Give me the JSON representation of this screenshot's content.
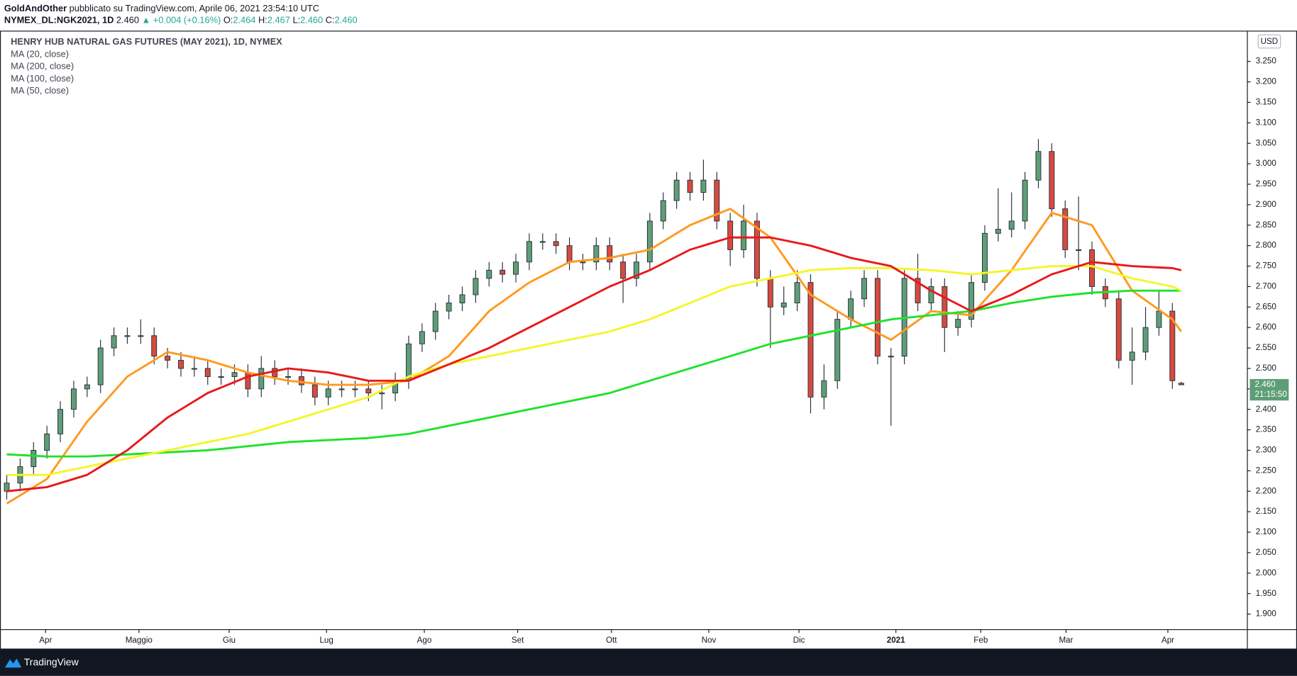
{
  "header": {
    "author": "GoldAndOther",
    "published": "pubblicato su TradingView.com, Aprile 06, 2021 23:54:10 UTC",
    "symbol": "NYMEX_DL:NGK2021, 1D",
    "last": "2.460",
    "change": "▲ +0.004 (+0.16%)",
    "ohlc": [
      {
        "label": "O:",
        "value": "2.464"
      },
      {
        "label": "H:",
        "value": "2.467"
      },
      {
        "label": "L:",
        "value": "2.460"
      },
      {
        "label": "C:",
        "value": "2.460"
      }
    ]
  },
  "chart_data": {
    "type": "candlestick",
    "title": "HENRY HUB NATURAL GAS FUTURES (MAY 2021), 1D, NYMEX",
    "currency": "USD",
    "last_price_label": "2.460",
    "countdown": "21:15:50",
    "grid": false,
    "up_color": "#5e9e77",
    "down_color": "#d64a3f",
    "xlim": [
      -0.4,
      277.8
    ],
    "ylim": [
      1.862,
      3.323
    ],
    "xticks": [
      {
        "value": 8.7,
        "label": "Apr"
      },
      {
        "value": 29.6,
        "label": "Maggio"
      },
      {
        "value": 49.8,
        "label": "Giu"
      },
      {
        "value": 71.6,
        "label": "Lug"
      },
      {
        "value": 93.5,
        "label": "Ago"
      },
      {
        "value": 114.4,
        "label": "Set"
      },
      {
        "value": 135.4,
        "label": "Ott"
      },
      {
        "value": 157.2,
        "label": "Nov"
      },
      {
        "value": 177.4,
        "label": "Dic"
      },
      {
        "value": 199.1,
        "label": "2021"
      },
      {
        "value": 218.1,
        "label": "Feb"
      },
      {
        "value": 237.2,
        "label": "Mar"
      },
      {
        "value": 260.0,
        "label": "Apr"
      }
    ],
    "yticks": [
      {
        "value": 1.9,
        "label": "1.900"
      },
      {
        "value": 1.95,
        "label": "1.950"
      },
      {
        "value": 2.0,
        "label": "2.000"
      },
      {
        "value": 2.05,
        "label": "2.050"
      },
      {
        "value": 2.1,
        "label": "2.100"
      },
      {
        "value": 2.15,
        "label": "2.150"
      },
      {
        "value": 2.2,
        "label": "2.200"
      },
      {
        "value": 2.25,
        "label": "2.250"
      },
      {
        "value": 2.3,
        "label": "2.300"
      },
      {
        "value": 2.35,
        "label": "2.350"
      },
      {
        "value": 2.4,
        "label": "2.400"
      },
      {
        "value": 2.45,
        "label": "2.450"
      },
      {
        "value": 2.5,
        "label": "2.500"
      },
      {
        "value": 2.55,
        "label": "2.550"
      },
      {
        "value": 2.6,
        "label": "2.600"
      },
      {
        "value": 2.65,
        "label": "2.650"
      },
      {
        "value": 2.7,
        "label": "2.700"
      },
      {
        "value": 2.75,
        "label": "2.750"
      },
      {
        "value": 2.8,
        "label": "2.800"
      },
      {
        "value": 2.85,
        "label": "2.850"
      },
      {
        "value": 2.9,
        "label": "2.900"
      },
      {
        "value": 2.95,
        "label": "2.950"
      },
      {
        "value": 3.0,
        "label": "3.000"
      },
      {
        "value": 3.05,
        "label": "3.050"
      },
      {
        "value": 3.1,
        "label": "3.100"
      },
      {
        "value": 3.15,
        "label": "3.150"
      },
      {
        "value": 3.2,
        "label": "3.200"
      },
      {
        "value": 3.25,
        "label": "3.250"
      }
    ],
    "x": [
      0,
      3,
      6,
      9,
      12,
      15,
      18,
      21,
      24,
      27,
      30,
      33,
      36,
      39,
      42,
      45,
      48,
      51,
      54,
      57,
      60,
      63,
      66,
      69,
      72,
      75,
      78,
      81,
      84,
      87,
      90,
      93,
      96,
      99,
      102,
      105,
      108,
      111,
      114,
      117,
      120,
      123,
      126,
      129,
      132,
      135,
      138,
      141,
      144,
      147,
      150,
      153,
      156,
      159,
      162,
      165,
      168,
      171,
      174,
      177,
      180,
      183,
      186,
      189,
      192,
      195,
      198,
      201,
      204,
      207,
      210,
      213,
      216,
      219,
      222,
      225,
      228,
      231,
      234,
      237,
      240,
      243,
      246,
      249,
      252,
      255,
      258,
      261,
      263
    ],
    "open": [
      2.2,
      2.22,
      2.26,
      2.3,
      2.34,
      2.4,
      2.45,
      2.46,
      2.55,
      2.58,
      2.58,
      2.58,
      2.53,
      2.52,
      2.5,
      2.5,
      2.48,
      2.48,
      2.49,
      2.45,
      2.5,
      2.48,
      2.48,
      2.46,
      2.43,
      2.45,
      2.45,
      2.45,
      2.44,
      2.44,
      2.47,
      2.56,
      2.59,
      2.64,
      2.66,
      2.68,
      2.72,
      2.74,
      2.73,
      2.76,
      2.81,
      2.81,
      2.8,
      2.76,
      2.76,
      2.8,
      2.76,
      2.72,
      2.76,
      2.86,
      2.91,
      2.96,
      2.93,
      2.96,
      2.86,
      2.79,
      2.86,
      2.72,
      2.65,
      2.66,
      2.71,
      2.43,
      2.47,
      2.62,
      2.67,
      2.72,
      2.53,
      2.53,
      2.72,
      2.66,
      2.7,
      2.6,
      2.62,
      2.71,
      2.83,
      2.84,
      2.86,
      2.96,
      3.03,
      2.89,
      2.79,
      2.79,
      2.7,
      2.67,
      2.52,
      2.54,
      2.6,
      2.64,
      2.464
    ],
    "high": [
      2.24,
      2.28,
      2.32,
      2.36,
      2.42,
      2.47,
      2.48,
      2.57,
      2.6,
      2.6,
      2.62,
      2.6,
      2.55,
      2.54,
      2.53,
      2.52,
      2.5,
      2.51,
      2.51,
      2.53,
      2.52,
      2.5,
      2.5,
      2.48,
      2.47,
      2.47,
      2.47,
      2.47,
      2.46,
      2.49,
      2.58,
      2.61,
      2.66,
      2.68,
      2.7,
      2.74,
      2.76,
      2.76,
      2.78,
      2.83,
      2.83,
      2.83,
      2.82,
      2.78,
      2.82,
      2.82,
      2.78,
      2.78,
      2.88,
      2.93,
      2.98,
      2.98,
      3.01,
      2.98,
      2.88,
      2.9,
      2.88,
      2.74,
      2.7,
      2.74,
      2.73,
      2.51,
      2.64,
      2.69,
      2.74,
      2.74,
      2.55,
      2.74,
      2.78,
      2.72,
      2.72,
      2.64,
      2.73,
      2.85,
      2.94,
      2.93,
      2.98,
      3.06,
      3.05,
      2.91,
      2.92,
      2.81,
      2.72,
      2.69,
      2.6,
      2.65,
      2.69,
      2.66,
      2.467
    ],
    "low": [
      2.18,
      2.2,
      2.24,
      2.28,
      2.32,
      2.38,
      2.43,
      2.44,
      2.53,
      2.56,
      2.56,
      2.51,
      2.5,
      2.48,
      2.48,
      2.46,
      2.46,
      2.46,
      2.43,
      2.43,
      2.46,
      2.46,
      2.44,
      2.41,
      2.41,
      2.43,
      2.43,
      2.42,
      2.4,
      2.42,
      2.45,
      2.54,
      2.57,
      2.62,
      2.64,
      2.66,
      2.7,
      2.71,
      2.71,
      2.74,
      2.79,
      2.78,
      2.74,
      2.74,
      2.74,
      2.74,
      2.66,
      2.7,
      2.74,
      2.84,
      2.89,
      2.91,
      2.91,
      2.84,
      2.75,
      2.77,
      2.7,
      2.55,
      2.63,
      2.64,
      2.39,
      2.4,
      2.45,
      2.6,
      2.65,
      2.51,
      2.36,
      2.51,
      2.64,
      2.64,
      2.54,
      2.58,
      2.6,
      2.69,
      2.81,
      2.82,
      2.84,
      2.94,
      2.87,
      2.77,
      2.74,
      2.68,
      2.65,
      2.5,
      2.46,
      2.52,
      2.58,
      2.45,
      2.46
    ],
    "close": [
      2.22,
      2.26,
      2.3,
      2.34,
      2.4,
      2.45,
      2.46,
      2.55,
      2.58,
      2.58,
      2.58,
      2.53,
      2.52,
      2.5,
      2.5,
      2.48,
      2.48,
      2.49,
      2.45,
      2.5,
      2.48,
      2.48,
      2.46,
      2.43,
      2.45,
      2.45,
      2.45,
      2.44,
      2.44,
      2.47,
      2.56,
      2.59,
      2.64,
      2.66,
      2.68,
      2.72,
      2.74,
      2.73,
      2.76,
      2.81,
      2.81,
      2.8,
      2.76,
      2.76,
      2.8,
      2.76,
      2.72,
      2.76,
      2.86,
      2.91,
      2.96,
      2.93,
      2.96,
      2.86,
      2.79,
      2.86,
      2.72,
      2.65,
      2.66,
      2.71,
      2.43,
      2.47,
      2.62,
      2.67,
      2.72,
      2.53,
      2.53,
      2.72,
      2.66,
      2.7,
      2.6,
      2.62,
      2.71,
      2.83,
      2.84,
      2.86,
      2.96,
      3.03,
      2.89,
      2.79,
      2.79,
      2.7,
      2.67,
      2.52,
      2.54,
      2.6,
      2.64,
      2.47,
      2.46
    ],
    "moving_averages": {
      "x": [
        0,
        9,
        18,
        27,
        36,
        45,
        54,
        63,
        72,
        81,
        90,
        99,
        108,
        117,
        126,
        135,
        144,
        153,
        162,
        171,
        180,
        189,
        198,
        207,
        216,
        225,
        234,
        243,
        252,
        261,
        263
      ],
      "series": [
        {
          "name": "MA (20, close)",
          "color": "#ff9a1f",
          "values": [
            2.17,
            2.23,
            2.37,
            2.48,
            2.54,
            2.52,
            2.49,
            2.47,
            2.46,
            2.46,
            2.47,
            2.53,
            2.64,
            2.71,
            2.76,
            2.77,
            2.79,
            2.85,
            2.89,
            2.82,
            2.68,
            2.62,
            2.57,
            2.64,
            2.63,
            2.74,
            2.88,
            2.85,
            2.69,
            2.62,
            2.59
          ]
        },
        {
          "name": "MA (200, close)",
          "color": "#1ee32a",
          "values": [
            2.29,
            2.285,
            2.285,
            2.29,
            2.295,
            2.3,
            2.31,
            2.32,
            2.325,
            2.33,
            2.34,
            2.36,
            2.38,
            2.4,
            2.42,
            2.44,
            2.47,
            2.5,
            2.53,
            2.56,
            2.58,
            2.6,
            2.62,
            2.63,
            2.64,
            2.66,
            2.675,
            2.685,
            2.69,
            2.69,
            2.69
          ]
        },
        {
          "name": "MA (100, close)",
          "color": "#f5f52a",
          "values": [
            2.24,
            2.24,
            2.26,
            2.28,
            2.3,
            2.32,
            2.34,
            2.37,
            2.4,
            2.43,
            2.48,
            2.51,
            2.53,
            2.55,
            2.57,
            2.59,
            2.62,
            2.66,
            2.7,
            2.72,
            2.74,
            2.745,
            2.745,
            2.74,
            2.73,
            2.74,
            2.75,
            2.75,
            2.72,
            2.7,
            2.69
          ]
        },
        {
          "name": "MA (50, close)",
          "color": "#e8191b",
          "values": [
            2.2,
            2.21,
            2.24,
            2.3,
            2.38,
            2.44,
            2.48,
            2.5,
            2.49,
            2.47,
            2.47,
            2.51,
            2.55,
            2.6,
            2.65,
            2.7,
            2.74,
            2.79,
            2.82,
            2.82,
            2.8,
            2.77,
            2.75,
            2.69,
            2.64,
            2.68,
            2.73,
            2.76,
            2.75,
            2.745,
            2.74
          ]
        }
      ]
    }
  },
  "footer": {
    "brand": "TradingView"
  }
}
